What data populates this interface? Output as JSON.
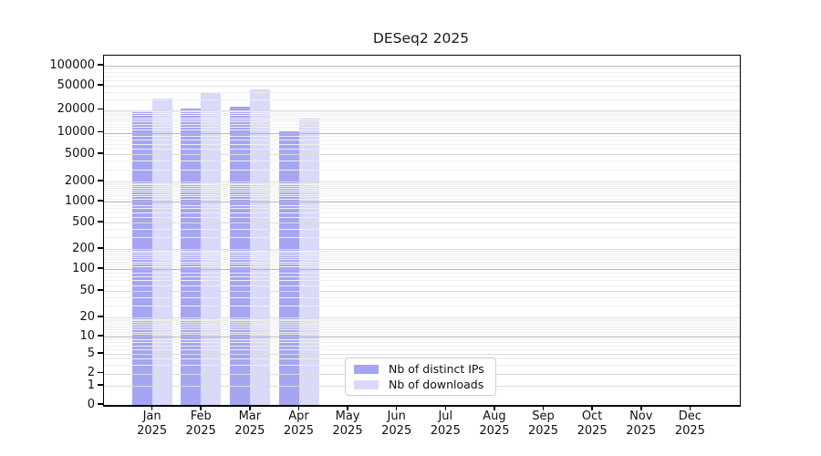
{
  "title": "DESeq2 2025",
  "legend": {
    "items": [
      {
        "label": "Nb of distinct IPs",
        "color": "#a5a5f2"
      },
      {
        "label": "Nb of downloads",
        "color": "#d9d9f9"
      }
    ]
  },
  "chart_data": {
    "type": "bar",
    "title": "DESeq2 2025",
    "categories": [
      "Jan 2025",
      "Feb 2025",
      "Mar 2025",
      "Apr 2025",
      "May 2025",
      "Jun 2025",
      "Jul 2025",
      "Aug 2025",
      "Sep 2025",
      "Oct 2025",
      "Nov 2025",
      "Dec 2025"
    ],
    "series": [
      {
        "name": "Nb of distinct IPs",
        "color": "#a5a5f2",
        "values": [
          19000,
          21000,
          23000,
          10300,
          null,
          null,
          null,
          null,
          null,
          null,
          null,
          null
        ]
      },
      {
        "name": "Nb of downloads",
        "color": "#d9d9f9",
        "values": [
          31000,
          38000,
          43000,
          15400,
          null,
          null,
          null,
          null,
          null,
          null,
          null,
          null
        ]
      }
    ],
    "xlabel": "",
    "ylabel": "",
    "y_ticks": [
      0,
      1,
      2,
      5,
      10,
      20,
      50,
      100,
      200,
      500,
      1000,
      2000,
      5000,
      10000,
      20000,
      50000,
      100000
    ],
    "yscale": "log-like with 0 baseline",
    "ylim": [
      0,
      140000
    ],
    "grid": true,
    "legend_position": "lower center"
  }
}
